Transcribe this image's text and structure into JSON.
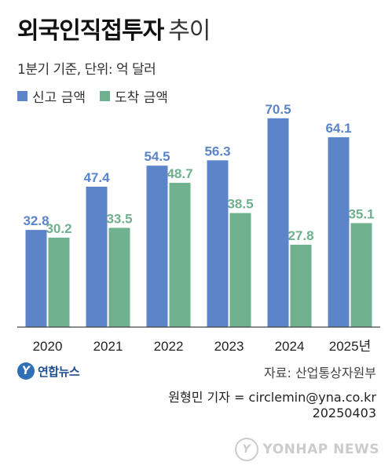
{
  "header": {
    "title_main": "외국인직접투자",
    "title_sub": "추이",
    "subtitle": "1분기 기준, 단위: 억 달러"
  },
  "colors": {
    "reported": "#5b85c8",
    "arrived": "#6fb08e",
    "label_reported": "#5b85c8",
    "label_arrived": "#6fb08e",
    "axis": "#444444"
  },
  "chart_data": {
    "type": "bar",
    "categories": [
      "2020",
      "2021",
      "2022",
      "2023",
      "2024",
      "2025년"
    ],
    "series": [
      {
        "name": "신고 금액",
        "values": [
          32.8,
          47.4,
          54.5,
          56.3,
          70.5,
          64.1
        ]
      },
      {
        "name": "도착 금액",
        "values": [
          30.2,
          33.5,
          48.7,
          38.5,
          27.8,
          35.1
        ]
      }
    ],
    "title": "외국인직접투자 추이",
    "ylim": [
      0,
      85
    ],
    "grid": false,
    "legend_position": "top-left"
  },
  "footer": {
    "logo_text": "연합뉴스",
    "logo_mark": "Y",
    "source": "자료: 산업통상자원부",
    "reporter": "원형민 기자 = circlemin@yna.co.kr",
    "date": "20250403",
    "watermark": "YONHAP NEWS"
  }
}
